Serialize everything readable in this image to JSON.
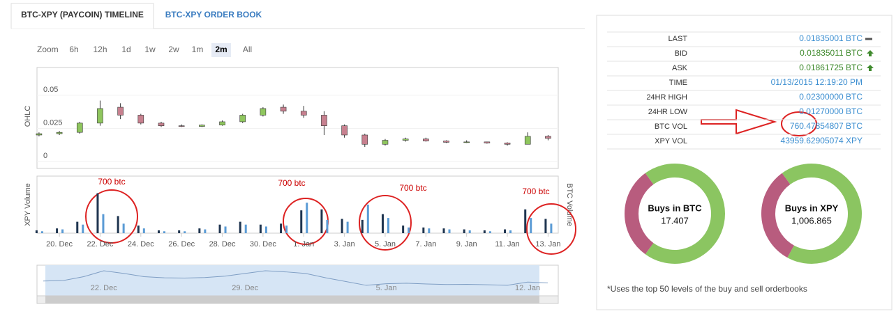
{
  "tabs": [
    "BTC-XPY (PAYCOIN) TIMELINE",
    "BTC-XPY ORDER BOOK"
  ],
  "zoom": {
    "label": "Zoom",
    "buttons": [
      "6h",
      "12h",
      "1d",
      "1w",
      "2w",
      "1m",
      "2m",
      "All"
    ],
    "active": 6
  },
  "ohlc": {
    "type": "candlestick",
    "axis_label": "OHLC",
    "x": [
      -1,
      0,
      1,
      2,
      3,
      4,
      5,
      6,
      7,
      8,
      9,
      10,
      11,
      12,
      13,
      14,
      15,
      16,
      17,
      18,
      19,
      20,
      21,
      22,
      23,
      24
    ],
    "candles": [
      [
        0.02,
        0.022,
        0.019,
        0.021
      ],
      [
        0.021,
        0.023,
        0.02,
        0.022
      ],
      [
        0.022,
        0.03,
        0.021,
        0.029
      ],
      [
        0.029,
        0.046,
        0.027,
        0.04
      ],
      [
        0.041,
        0.044,
        0.032,
        0.035
      ],
      [
        0.035,
        0.036,
        0.028,
        0.029
      ],
      [
        0.029,
        0.03,
        0.026,
        0.027
      ],
      [
        0.027,
        0.028,
        0.026,
        0.0265
      ],
      [
        0.0265,
        0.028,
        0.026,
        0.0275
      ],
      [
        0.0275,
        0.031,
        0.027,
        0.03
      ],
      [
        0.03,
        0.036,
        0.029,
        0.035
      ],
      [
        0.035,
        0.041,
        0.034,
        0.04
      ],
      [
        0.041,
        0.043,
        0.036,
        0.038
      ],
      [
        0.038,
        0.042,
        0.033,
        0.035
      ],
      [
        0.035,
        0.038,
        0.02,
        0.027
      ],
      [
        0.027,
        0.028,
        0.018,
        0.02
      ],
      [
        0.02,
        0.021,
        0.011,
        0.013
      ],
      [
        0.013,
        0.017,
        0.012,
        0.016
      ],
      [
        0.016,
        0.018,
        0.015,
        0.017
      ],
      [
        0.017,
        0.018,
        0.015,
        0.0155
      ],
      [
        0.0155,
        0.016,
        0.014,
        0.0145
      ],
      [
        0.0145,
        0.016,
        0.014,
        0.0148
      ],
      [
        0.0148,
        0.015,
        0.0135,
        0.014
      ],
      [
        0.014,
        0.0145,
        0.012,
        0.013
      ],
      [
        0.013,
        0.022,
        0.013,
        0.019
      ],
      [
        0.019,
        0.02,
        0.016,
        0.0175
      ]
    ],
    "up_color": "#8fc65e",
    "down_color": "#c7808f",
    "xlim": [
      -1.1,
      24.5
    ],
    "ylim": [
      0,
      0.071
    ],
    "yticks": [
      0,
      0.025,
      0.05
    ]
  },
  "volume": {
    "type": "bar",
    "axis_label": "XPY Volume",
    "axis_label_right": "BTC Volume",
    "ylim": [
      0,
      60000
    ],
    "series": [
      {
        "color": "#1f3550",
        "values": [
          3000,
          5000,
          12000,
          42000,
          18000,
          8000,
          3000,
          3000,
          5000,
          9000,
          12000,
          9000,
          10000,
          24000,
          25000,
          15000,
          14000,
          20000,
          8000,
          6000,
          5000,
          4000,
          3000,
          4000,
          25000,
          15000
        ]
      },
      {
        "color": "#5a9bd5",
        "values": [
          2000,
          4000,
          9000,
          20000,
          10000,
          5000,
          2000,
          2000,
          4000,
          7000,
          9000,
          7000,
          8000,
          32000,
          14000,
          12000,
          30000,
          16000,
          6000,
          5000,
          4000,
          3000,
          2000,
          3000,
          16000,
          10000
        ]
      }
    ],
    "annotations": [
      "700 btc",
      "700 btc",
      "700 btc",
      "700 btc"
    ]
  },
  "xticks": [
    {
      "value": 0,
      "label": "20. Dec"
    },
    {
      "value": 2,
      "label": "22. Dec"
    },
    {
      "value": 4,
      "label": "24. Dec"
    },
    {
      "value": 6,
      "label": "26. Dec"
    },
    {
      "value": 8,
      "label": "28. Dec"
    },
    {
      "value": 10,
      "label": "30. Dec"
    },
    {
      "value": 12,
      "label": "1. Jan"
    },
    {
      "value": 14,
      "label": "3. Jan"
    },
    {
      "value": 16,
      "label": "5. Jan"
    },
    {
      "value": 18,
      "label": "7. Jan"
    },
    {
      "value": 20,
      "label": "9. Jan"
    },
    {
      "value": 22,
      "label": "11. Jan"
    },
    {
      "value": 24,
      "label": "13. Jan"
    }
  ],
  "navigator_ticks": [
    {
      "value": 2,
      "label": "22. Dec"
    },
    {
      "value": 9,
      "label": "29. Dec"
    },
    {
      "value": 16,
      "label": "5. Jan"
    },
    {
      "value": 23,
      "label": "12. Jan"
    }
  ],
  "stats": [
    {
      "label": "LAST",
      "value": "0.01835001 BTC",
      "trend": "flat"
    },
    {
      "label": "BID",
      "value": "0.01835011 BTC",
      "trend": "up"
    },
    {
      "label": "ASK",
      "value": "0.01861725 BTC",
      "trend": "up"
    },
    {
      "label": "TIME",
      "value": "01/13/2015 12:19:20 PM"
    },
    {
      "label": "24HR HIGH",
      "value": "0.02300000 BTC"
    },
    {
      "label": "24HR LOW",
      "value": "0.01270000 BTC"
    },
    {
      "label": "BTC VOL",
      "value": "760.47854807 BTC"
    },
    {
      "label": "XPY VOL",
      "value": "43959.62905074 XPY"
    }
  ],
  "donuts": [
    {
      "title": "Buys in BTC",
      "value": "17.407",
      "shares": [
        70,
        30
      ]
    },
    {
      "title": "Buys in XPY",
      "value": "1,006.865",
      "shares": [
        68,
        32
      ]
    }
  ],
  "footnote": "*Uses the top 50 levels of the buy and sell orderbooks"
}
